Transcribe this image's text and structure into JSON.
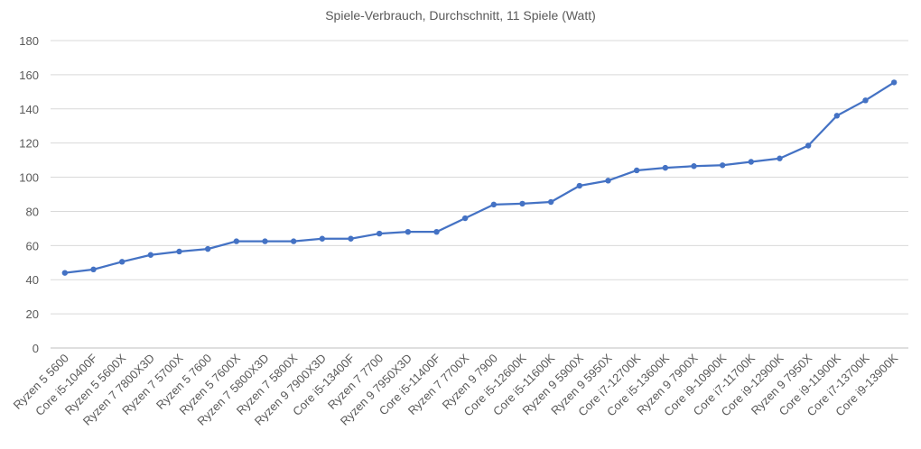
{
  "chart_data": {
    "type": "line",
    "title": "Spiele-Verbrauch, Durchschnitt, 11 Spiele (Watt)",
    "xlabel": "",
    "ylabel": "",
    "ylim": [
      0,
      180
    ],
    "yticks": [
      "0",
      "20",
      "40",
      "60",
      "80",
      "100",
      "120",
      "140",
      "160",
      "180"
    ],
    "grid": true,
    "legend": "none",
    "categories": [
      "Ryzen 5 5600",
      "Core i5-10400F",
      "Ryzen 5 5600X",
      "Ryzen 7 7800X3D",
      "Ryzen 7 5700X",
      "Ryzen 5 7600",
      "Ryzen 5 7600X",
      "Ryzen 7 5800X3D",
      "Ryzen 7 5800X",
      "Ryzen 9 7900X3D",
      "Core i5-13400F",
      "Ryzen 7 7700",
      "Ryzen 9 7950X3D",
      "Core i5-11400F",
      "Ryzen 7 7700X",
      "Ryzen 9 7900",
      "Core i5-12600K",
      "Core i5-11600K",
      "Ryzen 9 5900X",
      "Ryzen 9 5950X",
      "Core i7-12700K",
      "Core i5-13600K",
      "Ryzen 9 7900X",
      "Core i9-10900K",
      "Core i7-11700K",
      "Core i9-12900K",
      "Ryzen 9 7950X",
      "Core i9-11900K",
      "Core i7-13700K",
      "Core i9-13900K"
    ],
    "series": [
      {
        "values": [
          44,
          46,
          50.5,
          54.5,
          56.5,
          58,
          62.5,
          62.5,
          62.5,
          64,
          64,
          67,
          68,
          68,
          76,
          84,
          84.5,
          85.5,
          95,
          98,
          104,
          105.5,
          106.5,
          107,
          109,
          111,
          118.5,
          136,
          145,
          155.5
        ]
      }
    ],
    "colors": {
      "line": "#4472c4",
      "grid": "#d9d9d9",
      "text": "#595959"
    }
  }
}
